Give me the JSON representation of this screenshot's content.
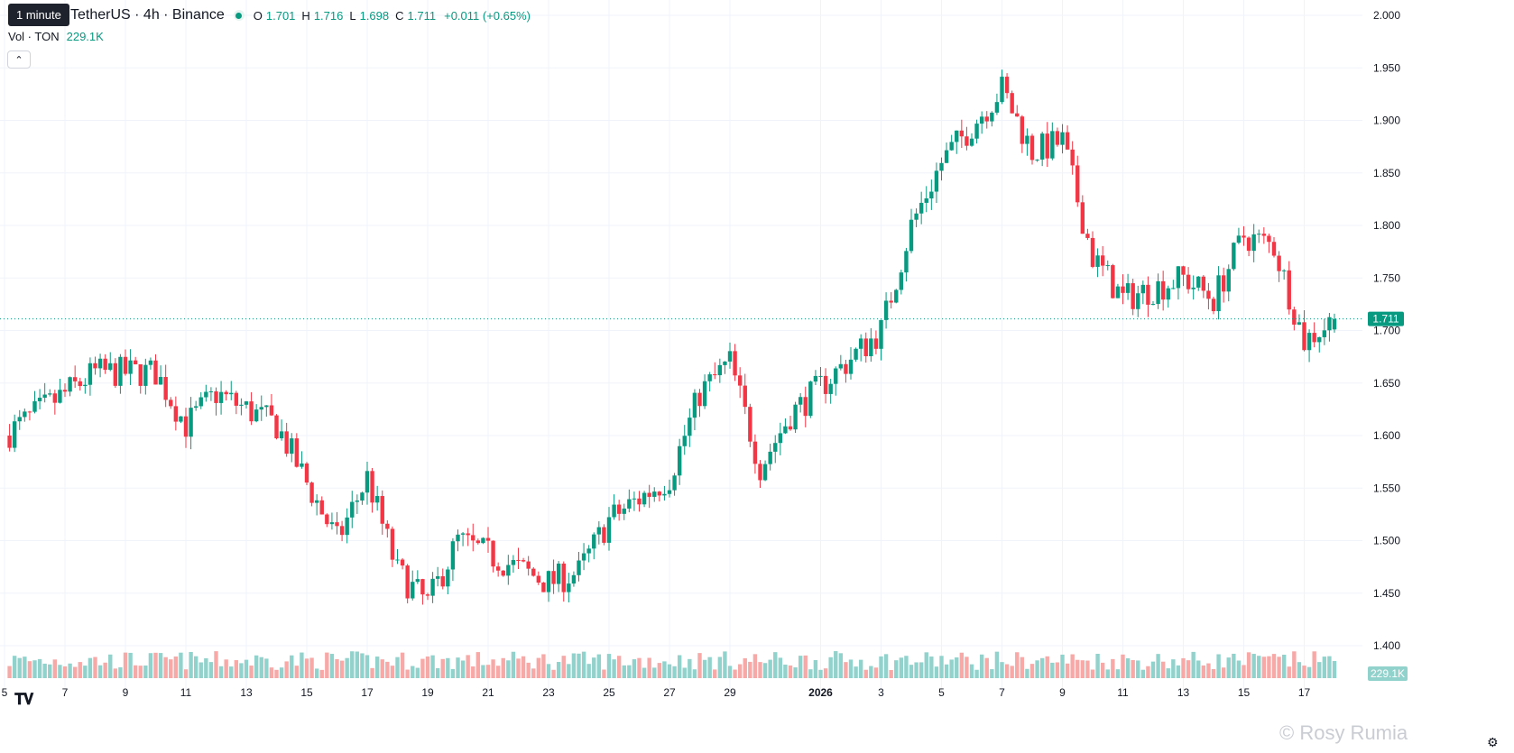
{
  "header": {
    "tooltip": "1 minute",
    "symbol": "TetherUS · 4h · Binance",
    "ohlc": [
      {
        "key": "O",
        "value": "1.701"
      },
      {
        "key": "H",
        "value": "1.716"
      },
      {
        "key": "L",
        "value": "1.698"
      },
      {
        "key": "C",
        "value": "1.711"
      }
    ],
    "change": "+0.011 (+0.65%)",
    "volume_label": "Vol · TON",
    "volume_value": "229.1K",
    "collapse_icon": "chevron-up-icon"
  },
  "watermark": "© Rosy Rumia",
  "colors": {
    "up": "#089981",
    "down": "#f23645",
    "up_vol": "#92d2cc",
    "down_vol": "#f7a9a7",
    "grid": "#f0f3fa"
  },
  "chart_data": {
    "type": "candlestick",
    "interval": "4h",
    "y_axis": {
      "ticks": [
        "2.000",
        "1.950",
        "1.900",
        "1.850",
        "1.800",
        "1.750",
        "1.700",
        "1.650",
        "1.600",
        "1.550",
        "1.500",
        "1.450",
        "1.400"
      ],
      "range": [
        1.39,
        2.0
      ],
      "last_price_label": "1.711",
      "last_price": 1.711,
      "volume_label": "229.1K"
    },
    "x_axis": {
      "ticks": [
        "5",
        "7",
        "9",
        "11",
        "13",
        "15",
        "17",
        "19",
        "21",
        "23",
        "25",
        "27",
        "29",
        "2026",
        "3",
        "5",
        "7",
        "9",
        "11",
        "13",
        "15",
        "17"
      ],
      "month_label": "2026"
    },
    "grid": true,
    "series": {
      "key_points": [
        {
          "date": "Dec 5",
          "close": 1.6
        },
        {
          "date": "Dec 8",
          "close": 1.66
        },
        {
          "date": "Dec 10",
          "close": 1.66
        },
        {
          "date": "Dec 11",
          "close": 1.61
        },
        {
          "date": "Dec 12",
          "close": 1.64
        },
        {
          "date": "Dec 14",
          "close": 1.61
        },
        {
          "date": "Dec 16",
          "close": 1.5
        },
        {
          "date": "Dec 17",
          "close": 1.56
        },
        {
          "date": "Dec 18",
          "close": 1.47
        },
        {
          "date": "Dec 19",
          "close": 1.44
        },
        {
          "date": "Dec 20",
          "close": 1.5
        },
        {
          "date": "Dec 23",
          "close": 1.46
        },
        {
          "date": "Dec 24",
          "close": 1.47
        },
        {
          "date": "Dec 25",
          "close": 1.52
        },
        {
          "date": "Dec 27",
          "close": 1.56
        },
        {
          "date": "Dec 28",
          "close": 1.64
        },
        {
          "date": "Dec 29",
          "close": 1.67
        },
        {
          "date": "Dec 30",
          "close": 1.57
        },
        {
          "date": "Dec 31",
          "close": 1.62
        },
        {
          "date": "Jan 2",
          "close": 1.7
        },
        {
          "date": "Jan 3",
          "close": 1.8
        },
        {
          "date": "Jan 4",
          "close": 1.86
        },
        {
          "date": "Jan 6",
          "close": 1.93
        },
        {
          "date": "Jan 7",
          "close": 1.87
        },
        {
          "date": "Jan 8",
          "close": 1.88
        },
        {
          "date": "Jan 9",
          "close": 1.77
        },
        {
          "date": "Jan 10",
          "close": 1.73
        },
        {
          "date": "Jan 12",
          "close": 1.75
        },
        {
          "date": "Jan 13",
          "close": 1.73
        },
        {
          "date": "Jan 14",
          "close": 1.79
        },
        {
          "date": "Jan 15",
          "close": 1.78
        },
        {
          "date": "Jan 16",
          "close": 1.69
        },
        {
          "date": "Jan 17",
          "close": 1.711
        }
      ]
    }
  }
}
